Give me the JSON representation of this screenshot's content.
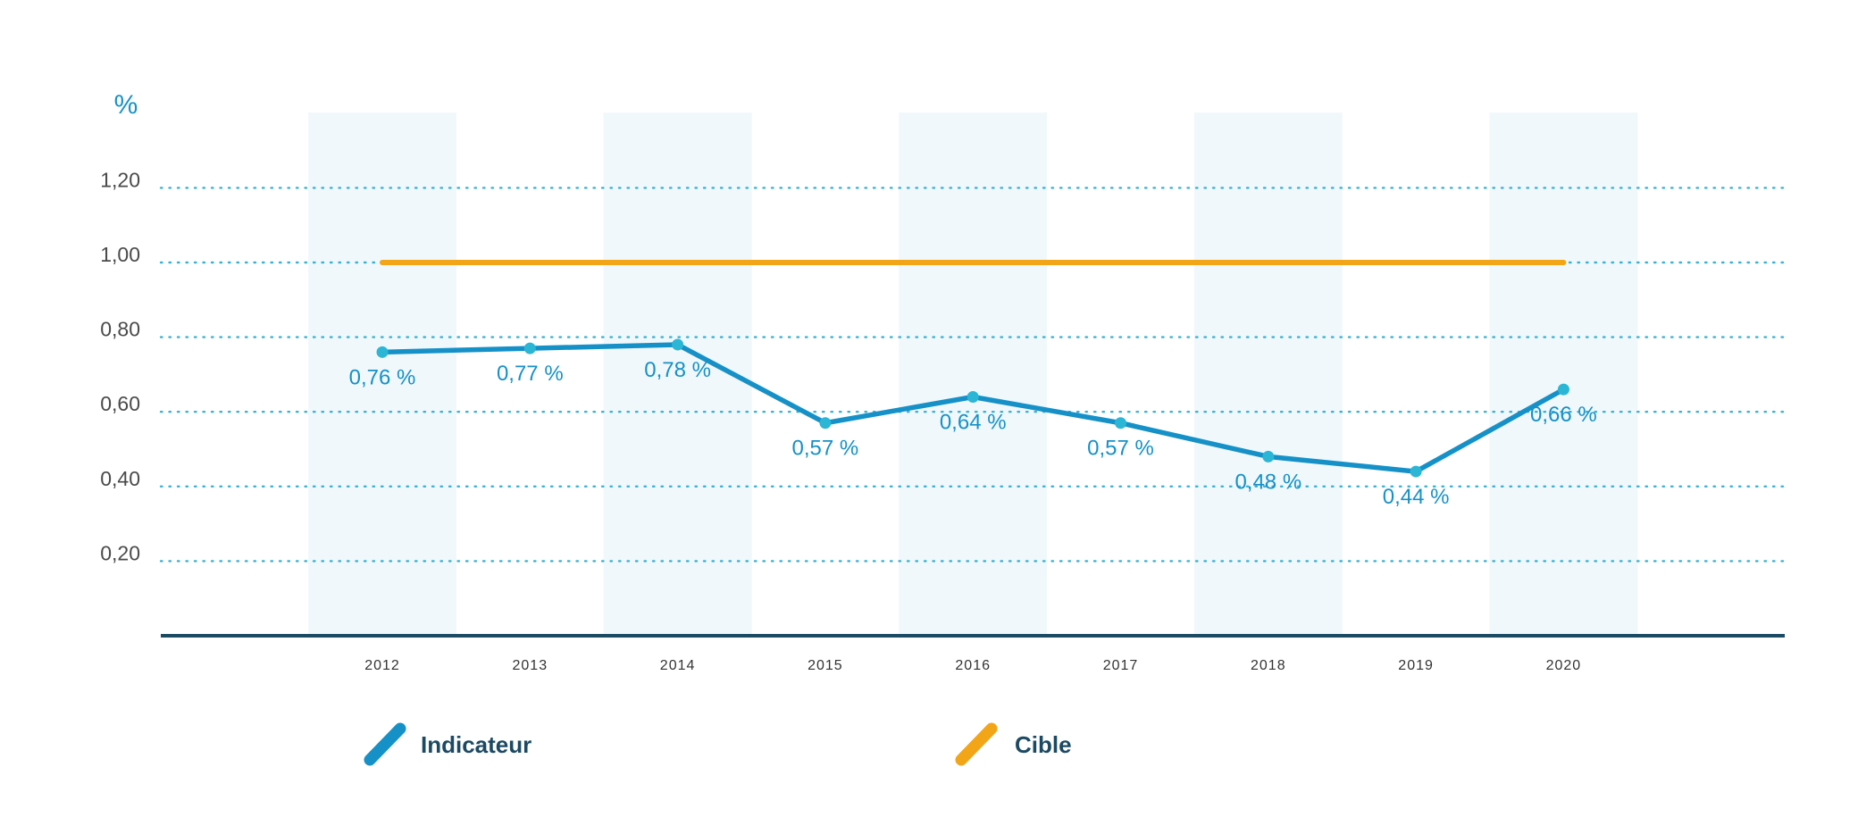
{
  "chart_data": {
    "type": "line",
    "y_unit": "%",
    "x": [
      "2012",
      "2013",
      "2014",
      "2015",
      "2016",
      "2017",
      "2018",
      "2019",
      "2020"
    ],
    "ylim": [
      0,
      1.4
    ],
    "y_ticks": [
      {
        "value": 0.2,
        "label": "0,20"
      },
      {
        "value": 0.4,
        "label": "0,40"
      },
      {
        "value": 0.6,
        "label": "0,60"
      },
      {
        "value": 0.8,
        "label": "0,80"
      },
      {
        "value": 1.0,
        "label": "1,00"
      },
      {
        "value": 1.2,
        "label": "1,20"
      }
    ],
    "grid": "horizontal-dotted",
    "series": [
      {
        "name": "Indicateur",
        "color": "#1591c8",
        "marker_color": "#2cb6d6",
        "values": [
          0.76,
          0.77,
          0.78,
          0.57,
          0.64,
          0.57,
          0.48,
          0.44,
          0.66
        ],
        "labels": [
          "0,76 %",
          "0,77 %",
          "0,78 %",
          "0,57 %",
          "0,64 %",
          "0,57 %",
          "0,48 %",
          "0,44 %",
          "0,66 %"
        ]
      },
      {
        "name": "Cible",
        "color": "#f2a516",
        "values": [
          1.0,
          1.0,
          1.0,
          1.0,
          1.0,
          1.0,
          1.0,
          1.0,
          1.0
        ]
      }
    ],
    "legend_position": "bottom",
    "band_color": "#f0f8fb",
    "axis_color": "#1c4a63",
    "grid_color": "#3ab3d6"
  }
}
